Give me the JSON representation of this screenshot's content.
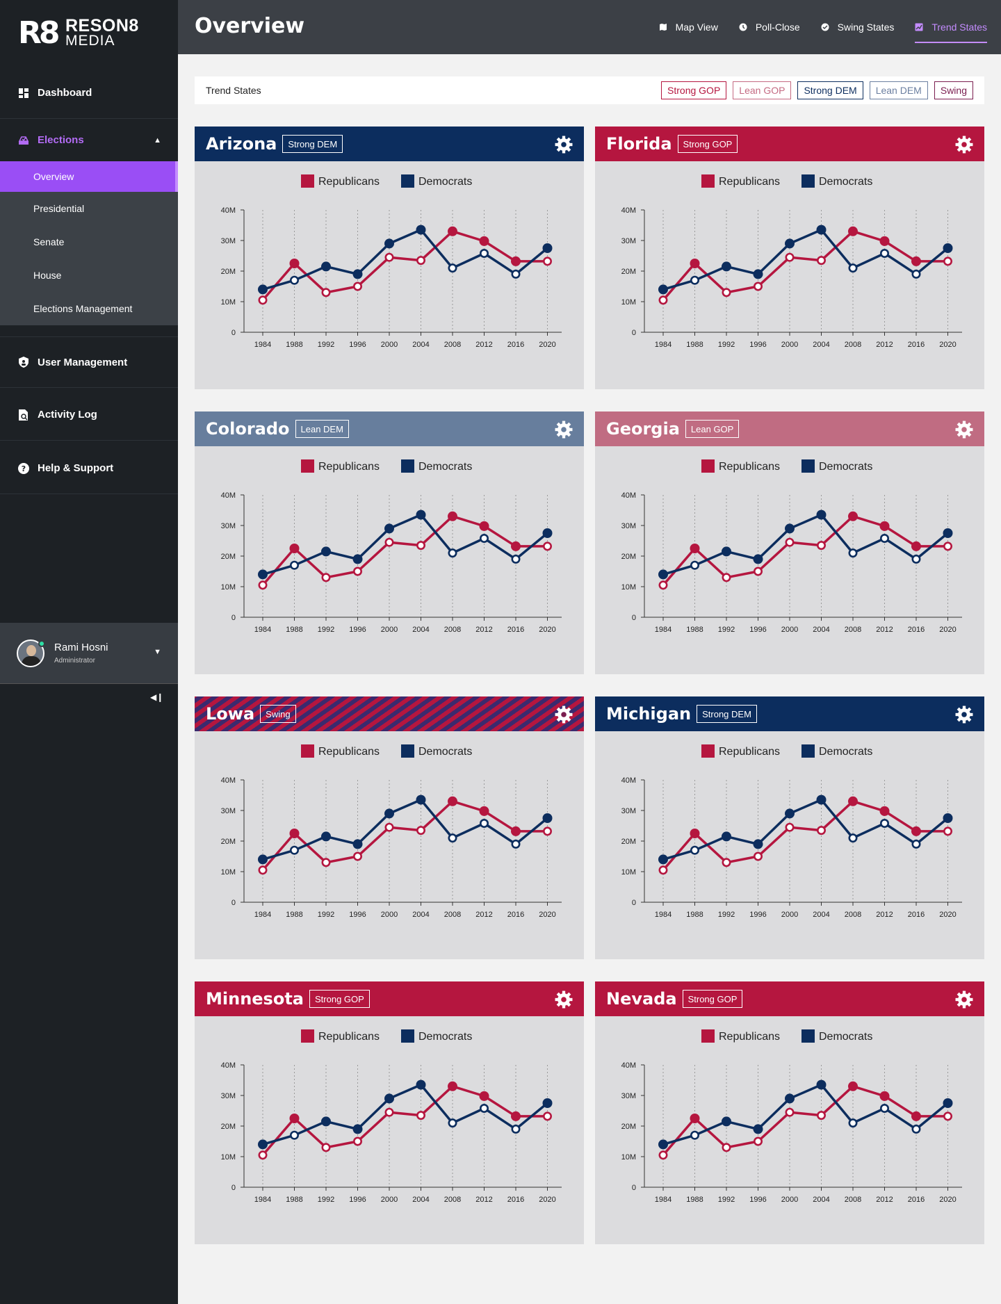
{
  "brand": {
    "mark": "R8",
    "line1": "RESON8",
    "line2": "MEDIA"
  },
  "sidebar": {
    "dashboard": "Dashboard",
    "elections": "Elections",
    "submenu": [
      "Overview",
      "Presidential",
      "Senate",
      "House",
      "Elections Management"
    ],
    "user_management": "User Management",
    "activity_log": "Activity Log",
    "help": "Help & Support",
    "user": {
      "name": "Rami Hosni",
      "role": "Administrator"
    }
  },
  "header": {
    "title": "Overview",
    "tabs": [
      "Map View",
      "Poll-Close",
      "Swing States",
      "Trend States"
    ],
    "active_tab": "Trend States"
  },
  "filter": {
    "label": "Trend States",
    "chips": [
      {
        "label": "Strong GOP",
        "color": "#b5163f"
      },
      {
        "label": "Lean GOP",
        "color": "#c46a82"
      },
      {
        "label": "Strong DEM",
        "color": "#0c2d5e"
      },
      {
        "label": "Lean DEM",
        "color": "#6b7fa0"
      },
      {
        "label": "Swing",
        "color": "#7a1d4f"
      }
    ]
  },
  "colors": {
    "republican": "#b5163f",
    "democrat": "#0c2d5e",
    "strong_gop": "#b5163f",
    "lean_gop": "#c06c82",
    "strong_dem": "#0c2d5e",
    "lean_dem": "#677e9d"
  },
  "cards": [
    {
      "state": "Arizona",
      "badge": "Strong DEM",
      "style": "strong_dem"
    },
    {
      "state": "Florida",
      "badge": "Strong GOP",
      "style": "strong_gop"
    },
    {
      "state": "Colorado",
      "badge": "Lean DEM",
      "style": "lean_dem"
    },
    {
      "state": "Georgia",
      "badge": "Lean GOP",
      "style": "lean_gop"
    },
    {
      "state": "Lowa",
      "badge": "Swing",
      "style": "swing"
    },
    {
      "state": "Michigan",
      "badge": "Strong DEM",
      "style": "strong_dem"
    },
    {
      "state": "Minnesota",
      "badge": "Strong GOP",
      "style": "strong_gop"
    },
    {
      "state": "Nevada",
      "badge": "Strong GOP",
      "style": "strong_gop"
    }
  ],
  "chart_data": {
    "type": "line",
    "x": [
      "1984",
      "1988",
      "1992",
      "1996",
      "2000",
      "2004",
      "2008",
      "2012",
      "2016",
      "2020"
    ],
    "ylim": [
      0,
      40000000
    ],
    "yticks": [
      "0",
      "10M",
      "20M",
      "30M",
      "40M"
    ],
    "legend_placement": "top-center",
    "grid": "vertical-dashed",
    "series": [
      {
        "name": "Republicans",
        "color": "#b5163f",
        "values": [
          10.5,
          22.5,
          13,
          15,
          24.5,
          23.5,
          33,
          29.8,
          23.2,
          23.2
        ],
        "filled": [
          false,
          true,
          false,
          false,
          false,
          false,
          true,
          true,
          true,
          false
        ]
      },
      {
        "name": "Democrats",
        "color": "#0c2d5e",
        "values": [
          14,
          17,
          21.5,
          19,
          29,
          33.5,
          21,
          25.8,
          19,
          27.5
        ],
        "filled": [
          true,
          false,
          true,
          true,
          true,
          true,
          false,
          false,
          false,
          true
        ]
      }
    ],
    "unit": "million"
  }
}
